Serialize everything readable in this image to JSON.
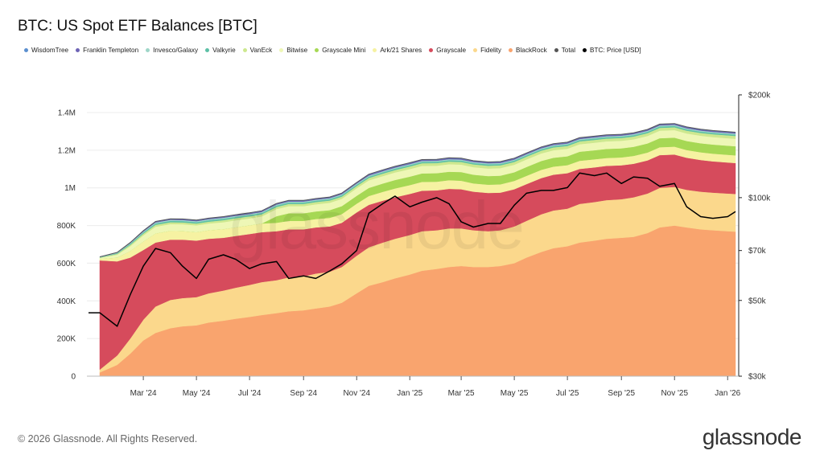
{
  "header": {
    "title": "BTC: US Spot ETF Balances [BTC]"
  },
  "footer": {
    "copyright": "© 2026 Glassnode. All Rights Reserved.",
    "brand": "glassnode",
    "watermark": "glassnode"
  },
  "legend": [
    {
      "label": "WisdomTree",
      "color": "#5b8fcf"
    },
    {
      "label": "Franklin Templeton",
      "color": "#6e63b5"
    },
    {
      "label": "Invesco/Galaxy",
      "color": "#9ed6c8"
    },
    {
      "label": "Valkyrie",
      "color": "#5cc0a6"
    },
    {
      "label": "VanEck",
      "color": "#cde88f"
    },
    {
      "label": "Bitwise",
      "color": "#eef7b6"
    },
    {
      "label": "Grayscale Mini",
      "color": "#a6d854"
    },
    {
      "label": "Ark/21 Shares",
      "color": "#f6f2a2"
    },
    {
      "label": "Grayscale",
      "color": "#d64b5c"
    },
    {
      "label": "Fidelity",
      "color": "#fbd88c"
    },
    {
      "label": "BlackRock",
      "color": "#f9a46e"
    },
    {
      "label": "Total",
      "color": "#555555"
    },
    {
      "label": "BTC: Price [USD]",
      "color": "#000000"
    }
  ],
  "chart_data": {
    "type": "area",
    "stacked": true,
    "x": [
      "2024-01-11",
      "2024-01-31",
      "2024-02-15",
      "2024-03-01",
      "2024-03-15",
      "2024-04-01",
      "2024-04-15",
      "2024-05-01",
      "2024-05-15",
      "2024-06-01",
      "2024-06-15",
      "2024-07-01",
      "2024-07-15",
      "2024-08-01",
      "2024-08-15",
      "2024-09-01",
      "2024-09-15",
      "2024-10-01",
      "2024-10-15",
      "2024-11-01",
      "2024-11-15",
      "2024-12-01",
      "2024-12-15",
      "2025-01-01",
      "2025-01-15",
      "2025-02-01",
      "2025-02-15",
      "2025-03-01",
      "2025-03-15",
      "2025-04-01",
      "2025-04-15",
      "2025-05-01",
      "2025-05-15",
      "2025-06-01",
      "2025-06-15",
      "2025-07-01",
      "2025-07-15",
      "2025-08-01",
      "2025-08-15",
      "2025-09-01",
      "2025-09-15",
      "2025-10-01",
      "2025-10-15",
      "2025-11-01",
      "2025-11-15",
      "2025-12-01",
      "2025-12-15",
      "2026-01-01",
      "2026-01-10"
    ],
    "series": [
      {
        "name": "BlackRock",
        "color": "#f9a46e",
        "values": [
          20000,
          60000,
          120000,
          190000,
          230000,
          255000,
          265000,
          270000,
          285000,
          295000,
          305000,
          315000,
          325000,
          335000,
          345000,
          350000,
          360000,
          370000,
          390000,
          440000,
          480000,
          500000,
          520000,
          540000,
          560000,
          570000,
          580000,
          585000,
          580000,
          580000,
          585000,
          600000,
          630000,
          660000,
          680000,
          690000,
          710000,
          720000,
          730000,
          735000,
          740000,
          760000,
          790000,
          800000,
          790000,
          780000,
          775000,
          770000,
          768000
        ]
      },
      {
        "name": "Fidelity",
        "color": "#fbd88c",
        "values": [
          15000,
          50000,
          80000,
          110000,
          140000,
          150000,
          150000,
          150000,
          155000,
          160000,
          165000,
          170000,
          175000,
          175000,
          180000,
          180000,
          185000,
          185000,
          190000,
          200000,
          205000,
          210000,
          210000,
          210000,
          210000,
          205000,
          205000,
          200000,
          195000,
          190000,
          190000,
          195000,
          195000,
          200000,
          200000,
          200000,
          205000,
          205000,
          205000,
          205000,
          210000,
          210000,
          210000,
          205000,
          200000,
          200000,
          200000,
          200000,
          200000
        ]
      },
      {
        "name": "Grayscale",
        "color": "#d64b5c",
        "values": [
          580000,
          500000,
          430000,
          370000,
          340000,
          320000,
          310000,
          300000,
          290000,
          280000,
          275000,
          270000,
          265000,
          260000,
          255000,
          250000,
          245000,
          240000,
          235000,
          230000,
          225000,
          222000,
          220000,
          218000,
          215000,
          212000,
          210000,
          208000,
          205000,
          203000,
          200000,
          198000,
          195000,
          192000,
          190000,
          188000,
          186000,
          184000,
          182000,
          180000,
          178000,
          176000,
          174000,
          172000,
          170000,
          168000,
          166000,
          165000,
          164000
        ]
      },
      {
        "name": "Ark/21 Shares",
        "color": "#f6f2a2",
        "values": [
          8000,
          20000,
          35000,
          45000,
          48000,
          47000,
          46000,
          45000,
          45000,
          46000,
          46000,
          46000,
          46000,
          45000,
          45000,
          45000,
          45000,
          46000,
          46000,
          46000,
          47000,
          47000,
          47000,
          47000,
          47000,
          46000,
          46000,
          45000,
          44000,
          44000,
          44000,
          44000,
          44000,
          44000,
          43000,
          43000,
          43000,
          43000,
          42000,
          42000,
          42000,
          42000,
          42000,
          42000,
          41000,
          41000,
          41000,
          41000,
          41000
        ]
      },
      {
        "name": "Grayscale Mini",
        "color": "#a6d854",
        "values": [
          0,
          0,
          0,
          0,
          0,
          0,
          0,
          0,
          0,
          0,
          0,
          0,
          0,
          35000,
          40000,
          40000,
          40000,
          41000,
          42000,
          42000,
          43000,
          44000,
          45000,
          45000,
          45000,
          45000,
          45000,
          46000,
          46000,
          46000,
          46000,
          46000,
          47000,
          47000,
          47000,
          47000,
          48000,
          48000,
          48000,
          48000,
          48000,
          48000,
          48000,
          48000,
          48000,
          48000,
          48000,
          48000,
          48000
        ]
      },
      {
        "name": "Bitwise",
        "color": "#eef7b6",
        "values": [
          5000,
          15000,
          25000,
          33000,
          36000,
          36000,
          36000,
          36000,
          36000,
          37000,
          37000,
          37000,
          38000,
          38000,
          38000,
          38000,
          38000,
          39000,
          39000,
          40000,
          40000,
          40000,
          40000,
          40000,
          40000,
          40000,
          40000,
          40000,
          40000,
          40000,
          40000,
          40000,
          40000,
          40000,
          40000,
          40000,
          40000,
          40000,
          40000,
          40000,
          40000,
          40000,
          40000,
          40000,
          40000,
          40000,
          40000,
          40000,
          40000
        ]
      },
      {
        "name": "VanEck",
        "color": "#cde88f",
        "values": [
          2000,
          5000,
          8000,
          9000,
          10000,
          10000,
          10000,
          10000,
          10000,
          11000,
          11000,
          11000,
          11000,
          11000,
          12000,
          12000,
          12000,
          12000,
          12000,
          12000,
          13000,
          13000,
          13000,
          14000,
          14000,
          14000,
          14000,
          14000,
          15000,
          15000,
          15000,
          15000,
          15000,
          15000,
          15000,
          15000,
          15000,
          15000,
          15000,
          15000,
          15000,
          15000,
          15000,
          15000,
          15000,
          15000,
          15000,
          15000,
          15000
        ]
      },
      {
        "name": "Valkyrie",
        "color": "#5cc0a6",
        "values": [
          1000,
          3000,
          5000,
          6000,
          7000,
          7000,
          7000,
          7000,
          7000,
          7000,
          7000,
          7000,
          7000,
          7000,
          7000,
          7000,
          7000,
          7000,
          7000,
          7000,
          7000,
          7000,
          7000,
          7000,
          7000,
          7000,
          7000,
          7000,
          7000,
          7000,
          7000,
          7000,
          7000,
          7000,
          7000,
          7000,
          7000,
          7000,
          7000,
          7000,
          7000,
          7000,
          7000,
          7000,
          7000,
          7000,
          7000,
          7000,
          7000
        ]
      },
      {
        "name": "Invesco/Galaxy",
        "color": "#9ed6c8",
        "values": [
          2000,
          3000,
          4000,
          5000,
          5500,
          5500,
          5500,
          5500,
          5500,
          5500,
          5500,
          5500,
          5500,
          5500,
          5500,
          5500,
          5500,
          5500,
          5500,
          5500,
          5500,
          5500,
          5500,
          5500,
          5500,
          5500,
          5500,
          5500,
          5500,
          5500,
          5500,
          5500,
          5500,
          5500,
          5500,
          5500,
          5500,
          5500,
          5500,
          5500,
          5500,
          5500,
          5500,
          5500,
          5500,
          5500,
          5500,
          5500,
          5500
        ]
      },
      {
        "name": "Franklin Templeton",
        "color": "#6e63b5",
        "values": [
          500,
          1000,
          2000,
          3000,
          3500,
          3500,
          3500,
          3500,
          4000,
          4000,
          4000,
          4000,
          4000,
          4000,
          4000,
          4000,
          4000,
          4000,
          4000,
          4500,
          5000,
          5000,
          5000,
          5000,
          5000,
          5000,
          5000,
          5000,
          5000,
          5000,
          5000,
          5000,
          5000,
          5000,
          5000,
          5000,
          5000,
          5000,
          5000,
          5000,
          5000,
          5000,
          5000,
          5000,
          5000,
          5000,
          5000,
          5000,
          5000
        ]
      },
      {
        "name": "WisdomTree",
        "color": "#5b8fcf",
        "values": [
          200,
          500,
          1000,
          1500,
          1800,
          1800,
          1800,
          1800,
          1800,
          1800,
          1800,
          1800,
          1800,
          1800,
          1800,
          1800,
          1800,
          1800,
          1800,
          1800,
          2000,
          2000,
          2000,
          2000,
          2000,
          2000,
          2000,
          2000,
          2000,
          2000,
          2000,
          2000,
          2000,
          2000,
          2000,
          2000,
          2000,
          2000,
          2000,
          2000,
          2000,
          2000,
          2000,
          2000,
          2000,
          2000,
          2000,
          2000,
          2000
        ]
      }
    ],
    "price_series": {
      "name": "BTC: Price [USD]",
      "color": "#000000",
      "values": [
        46000,
        42000,
        52000,
        63000,
        71000,
        69000,
        63000,
        58000,
        66000,
        68000,
        66000,
        62000,
        64000,
        65000,
        58000,
        59000,
        58000,
        61000,
        64000,
        70000,
        90000,
        96000,
        101000,
        94000,
        97000,
        100000,
        96000,
        85000,
        82000,
        84000,
        84000,
        95000,
        103000,
        105000,
        105000,
        107000,
        118000,
        116000,
        118000,
        110000,
        115000,
        114000,
        108000,
        110000,
        94000,
        88000,
        87000,
        88000,
        91000
      ]
    },
    "y_left": {
      "ticks": [
        0,
        200000,
        400000,
        600000,
        800000,
        1000000,
        1200000,
        1400000
      ],
      "tick_labels": [
        "0",
        "200K",
        "400K",
        "600K",
        "800K",
        "1M",
        "1.2M",
        "1.4M"
      ],
      "ylim": [
        0,
        1400000
      ]
    },
    "y_right": {
      "scale": "log",
      "ticks": [
        30000,
        50000,
        70000,
        100000,
        200000
      ],
      "tick_labels": [
        "$30k",
        "$50k",
        "$70k",
        "$100k",
        "$200k"
      ],
      "ylim": [
        30000,
        200000
      ]
    },
    "x_ticks": {
      "dates": [
        "2024-03-01",
        "2024-05-01",
        "2024-07-01",
        "2024-09-01",
        "2024-11-01",
        "2025-01-01",
        "2025-03-01",
        "2025-05-01",
        "2025-07-01",
        "2025-09-01",
        "2025-11-01",
        "2026-01-01"
      ],
      "labels": [
        "Mar '24",
        "May '24",
        "Jul '24",
        "Sep '24",
        "Nov '24",
        "Jan '25",
        "Mar '25",
        "May '25",
        "Jul '25",
        "Sep '25",
        "Nov '25",
        "Jan '26"
      ]
    },
    "grid": true
  }
}
